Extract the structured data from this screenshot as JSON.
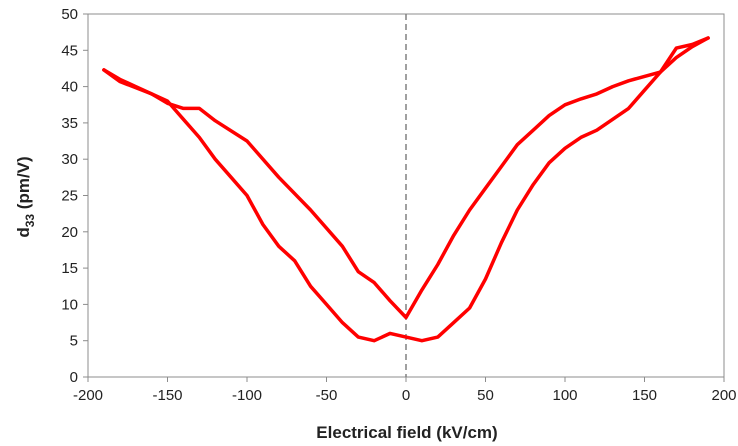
{
  "chart_data": {
    "type": "line",
    "xlabel": "Electrical field (kV/cm)",
    "ylabel_main": "d",
    "ylabel_sub": "33",
    "ylabel_unit": " (pm/V)",
    "xlim": [
      -200,
      200
    ],
    "ylim": [
      0,
      50
    ],
    "xticks": [
      -200,
      -150,
      -100,
      -50,
      0,
      50,
      100,
      150,
      200
    ],
    "yticks": [
      0,
      5,
      10,
      15,
      20,
      25,
      30,
      35,
      40,
      45,
      50
    ],
    "grid": false,
    "reference_line": {
      "x": 0,
      "style": "dashed",
      "color": "#808080"
    },
    "series": [
      {
        "color": "#ff0000",
        "x": [
          -190,
          -180,
          -160,
          -150,
          -140,
          -130,
          -120,
          -100,
          -80,
          -60,
          -40,
          -30,
          -20,
          -10,
          0,
          10,
          20,
          30,
          40,
          50,
          60,
          70,
          80,
          90,
          100,
          110,
          120,
          130,
          140,
          150,
          160,
          170,
          180,
          190
        ],
        "y": [
          42.3,
          40.7,
          39.0,
          37.7,
          37.0,
          37.0,
          35.3,
          32.5,
          27.5,
          23.0,
          18.0,
          14.5,
          13.0,
          10.5,
          8.2,
          12.0,
          15.5,
          19.5,
          23.0,
          26.0,
          29.0,
          32.0,
          34.0,
          36.0,
          37.5,
          38.3,
          39.0,
          40.0,
          40.8,
          41.4,
          42.0,
          44.0,
          45.5,
          46.7
        ]
      },
      {
        "color": "#ff0000",
        "x": [
          190,
          180,
          170,
          160,
          150,
          140,
          130,
          120,
          110,
          100,
          90,
          80,
          70,
          60,
          50,
          40,
          30,
          20,
          10,
          0,
          -10,
          -20,
          -30,
          -40,
          -50,
          -60,
          -70,
          -80,
          -90,
          -100,
          -110,
          -120,
          -130,
          -140,
          -150,
          -160,
          -170,
          -180,
          -190
        ],
        "y": [
          46.7,
          45.8,
          45.3,
          42.0,
          39.5,
          37.0,
          35.5,
          34.0,
          33.0,
          31.5,
          29.5,
          26.5,
          23.0,
          18.5,
          13.5,
          9.5,
          7.5,
          5.5,
          5.0,
          5.5,
          6.0,
          5.0,
          5.5,
          7.5,
          10.0,
          12.5,
          16.0,
          18.0,
          21.0,
          25.0,
          27.5,
          30.0,
          33.0,
          35.5,
          38.0,
          39.0,
          40.0,
          41.0,
          42.3
        ]
      }
    ]
  }
}
